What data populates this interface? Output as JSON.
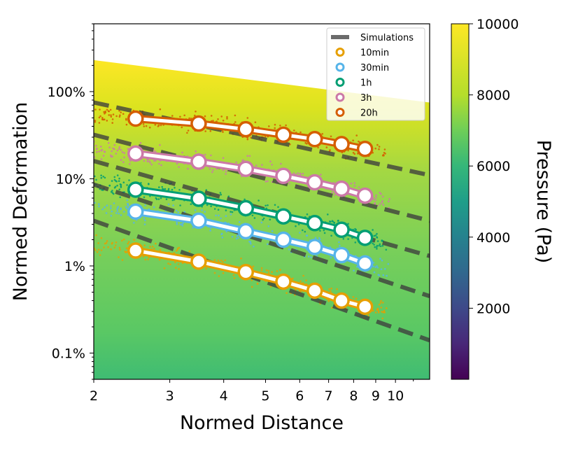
{
  "chart_data": {
    "type": "scatter",
    "xlabel": "Normed Distance",
    "ylabel": "Normed Deformation",
    "x_scale": "log",
    "y_scale": "log",
    "xlim": [
      2,
      12
    ],
    "ylim": [
      0.0005,
      6.0
    ],
    "x_ticks": [
      {
        "value": 2,
        "label": "2"
      },
      {
        "value": 3,
        "label": "3"
      },
      {
        "value": 4,
        "label": "4"
      },
      {
        "value": 5,
        "label": "5"
      },
      {
        "value": 6,
        "label": "6"
      },
      {
        "value": 7,
        "label": "7"
      },
      {
        "value": 8,
        "label": "8"
      },
      {
        "value": 9,
        "label": "9"
      },
      {
        "value": 10,
        "label": "10"
      }
    ],
    "y_ticks": [
      {
        "value": 0.001,
        "label": "0.1%"
      },
      {
        "value": 0.01,
        "label": "1%"
      },
      {
        "value": 0.1,
        "label": "10%"
      },
      {
        "value": 1.0,
        "label": "100%"
      }
    ],
    "colorbar": {
      "label": "Pressure (Pa)",
      "range": [
        0,
        10000
      ],
      "ticks": [
        {
          "value": 2000,
          "label": "2000"
        },
        {
          "value": 4000,
          "label": "4000"
        },
        {
          "value": 6000,
          "label": "6000"
        },
        {
          "value": 8000,
          "label": "8000"
        },
        {
          "value": 10000,
          "label": "10000"
        }
      ],
      "colormap": "viridis"
    },
    "legend": {
      "placement": "top-right",
      "entries": [
        {
          "label": "Simulations",
          "type": "line",
          "color": "#6b6b6b"
        },
        {
          "label": "10min",
          "type": "marker",
          "color": "#e69f00"
        },
        {
          "label": "30min",
          "type": "marker",
          "color": "#56b4e9"
        },
        {
          "label": "1h",
          "type": "marker",
          "color": "#009e73"
        },
        {
          "label": "3h",
          "type": "marker",
          "color": "#cc79a7"
        },
        {
          "label": "20h",
          "type": "marker",
          "color": "#d55e00"
        }
      ]
    },
    "series": [
      {
        "name": "10min",
        "color": "#e69f00",
        "x": [
          2.5,
          3.5,
          4.5,
          5.5,
          6.5,
          7.5,
          8.5
        ],
        "y": [
          0.015,
          0.0112,
          0.0085,
          0.0066,
          0.0052,
          0.004,
          0.0034
        ]
      },
      {
        "name": "30min",
        "color": "#56b4e9",
        "x": [
          2.5,
          3.5,
          4.5,
          5.5,
          6.5,
          7.5,
          8.5
        ],
        "y": [
          0.042,
          0.033,
          0.025,
          0.02,
          0.0165,
          0.0133,
          0.0107
        ]
      },
      {
        "name": "1h",
        "color": "#009e73",
        "x": [
          2.5,
          3.5,
          4.5,
          5.5,
          6.5,
          7.5,
          8.5
        ],
        "y": [
          0.075,
          0.059,
          0.046,
          0.037,
          0.031,
          0.026,
          0.021
        ]
      },
      {
        "name": "3h",
        "color": "#cc79a7",
        "x": [
          2.5,
          3.5,
          4.5,
          5.5,
          6.5,
          7.5,
          8.5
        ],
        "y": [
          0.195,
          0.157,
          0.13,
          0.108,
          0.091,
          0.077,
          0.064
        ]
      },
      {
        "name": "20h",
        "color": "#d55e00",
        "x": [
          2.5,
          3.5,
          4.5,
          5.5,
          6.5,
          7.5,
          8.5
        ],
        "y": [
          0.49,
          0.43,
          0.37,
          0.32,
          0.285,
          0.25,
          0.22
        ]
      }
    ],
    "simulations": {
      "color": "#3d3d3d",
      "x": [
        2,
        12
      ],
      "lines": [
        {
          "y": [
            0.75,
            0.11
          ]
        },
        {
          "y": [
            0.32,
            0.033
          ]
        },
        {
          "y": [
            0.16,
            0.013
          ]
        },
        {
          "y": [
            0.086,
            0.0045
          ]
        },
        {
          "y": [
            0.033,
            0.0014
          ]
        }
      ]
    },
    "pressure_field": {
      "upper_boundary": {
        "x": [
          2,
          12
        ],
        "y": [
          2.3,
          0.75
        ]
      }
    }
  }
}
